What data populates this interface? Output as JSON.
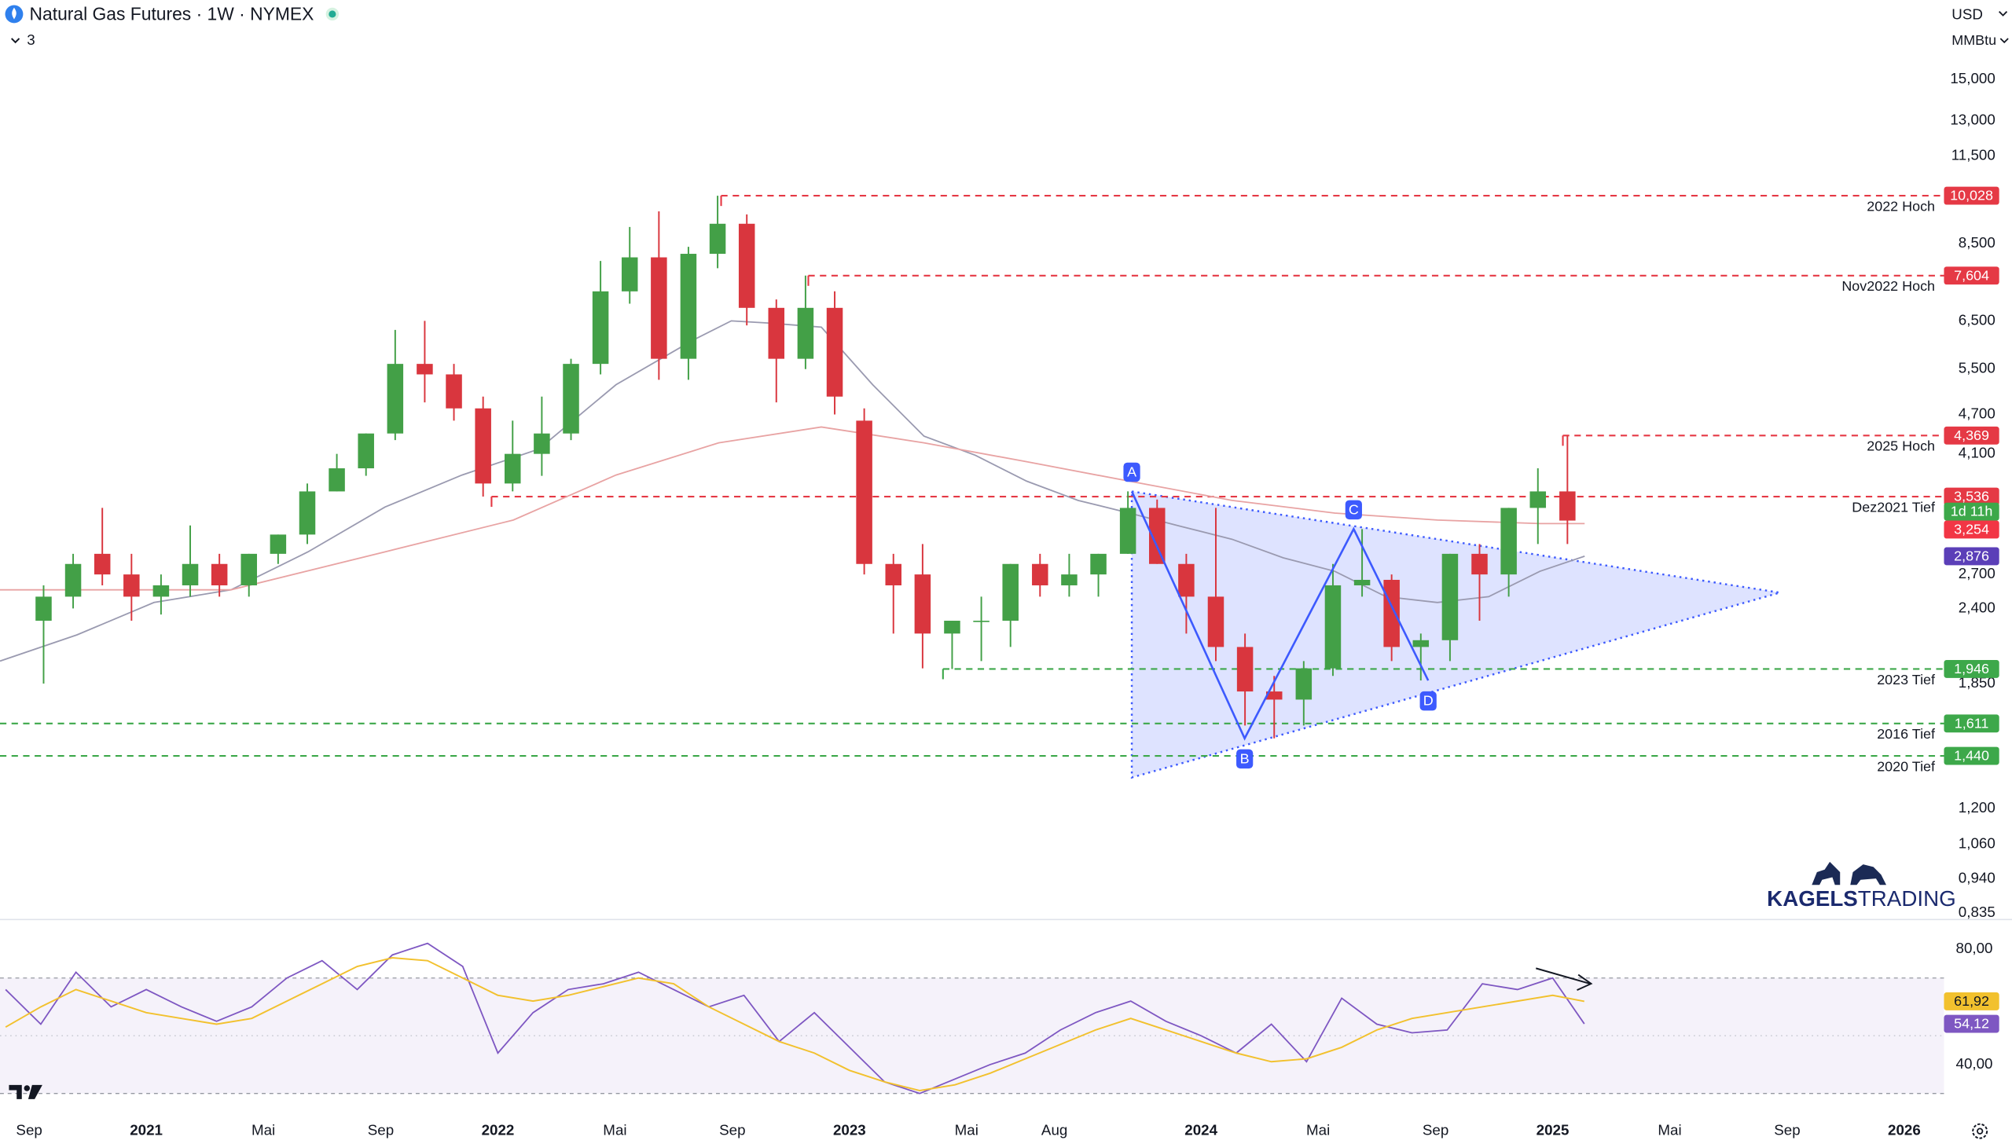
{
  "header": {
    "title": "Natural Gas Futures · 1W · NYMEX",
    "indicators": "3",
    "currency": "USD",
    "unit": "MMBtu"
  },
  "watermark": [
    "KAGELS",
    "TRADING"
  ],
  "chart_data": [
    {
      "type": "candlestick",
      "log_scale": true,
      "xlim": [
        2020.584,
        2026.113
      ],
      "ylim": [
        0.824,
        16.54
      ],
      "xticks": [
        {
          "value": 2020.667,
          "label": "Sep"
        },
        2021,
        {
          "value": 2021.333,
          "label": "Mai"
        },
        {
          "value": 2021.667,
          "label": "Sep"
        },
        2022,
        {
          "value": 2022.333,
          "label": "Mai"
        },
        {
          "value": 2022.667,
          "label": "Sep"
        },
        2023,
        {
          "value": 2023.333,
          "label": "Mai"
        },
        {
          "value": 2023.583,
          "label": "Aug"
        },
        2024,
        {
          "value": 2024.333,
          "label": "Mai"
        },
        {
          "value": 2024.667,
          "label": "Sep"
        },
        2025,
        {
          "value": 2025.333,
          "label": "Mai"
        },
        {
          "value": 2025.667,
          "label": "Sep"
        },
        2026
      ],
      "yticks": [
        {
          "value": 15,
          "label": "15,000"
        },
        {
          "value": 13,
          "label": "13,000"
        },
        {
          "value": 11.5,
          "label": "11,500"
        },
        {
          "value": 8.5,
          "label": "8,500"
        },
        {
          "value": 6.5,
          "label": "6,500"
        },
        {
          "value": 5.5,
          "label": "5,500"
        },
        {
          "value": 4.7,
          "label": "4,700"
        },
        {
          "value": 4.1,
          "label": "4,100"
        },
        {
          "value": 2.7,
          "label": "2,700"
        },
        {
          "value": 2.4,
          "label": "2,400"
        },
        {
          "value": 1.85,
          "label": "1,850"
        },
        {
          "value": 1.2,
          "label": "1,200"
        },
        {
          "value": 1.06,
          "label": "1,060"
        },
        {
          "value": 0.94,
          "label": "0,940"
        },
        {
          "value": 0.835,
          "label": "0,835"
        }
      ],
      "up_color": "#43a047",
      "down_color": "#d9363e",
      "x": [
        2020.708,
        2020.792,
        2020.875,
        2020.958,
        2021.042,
        2021.125,
        2021.208,
        2021.292,
        2021.375,
        2021.458,
        2021.542,
        2021.625,
        2021.708,
        2021.792,
        2021.875,
        2021.958,
        2022.042,
        2022.125,
        2022.208,
        2022.292,
        2022.375,
        2022.458,
        2022.542,
        2022.625,
        2022.708,
        2022.792,
        2022.875,
        2022.958,
        2023.042,
        2023.125,
        2023.208,
        2023.292,
        2023.375,
        2023.458,
        2023.542,
        2023.625,
        2023.708,
        2023.792,
        2023.875,
        2023.958,
        2024.042,
        2024.125,
        2024.208,
        2024.292,
        2024.375,
        2024.458,
        2024.542,
        2024.625,
        2024.708,
        2024.792,
        2024.875,
        2024.958,
        2025.042
      ],
      "open": [
        2.3,
        2.5,
        2.9,
        2.7,
        2.5,
        2.6,
        2.8,
        2.6,
        2.9,
        3.1,
        3.6,
        3.9,
        4.4,
        5.6,
        5.4,
        4.8,
        3.7,
        4.1,
        4.4,
        5.6,
        7.2,
        8.1,
        5.7,
        8.2,
        9.1,
        6.8,
        5.7,
        6.8,
        4.6,
        2.8,
        2.7,
        2.2,
        2.3,
        2.3,
        2.8,
        2.6,
        2.7,
        2.9,
        3.4,
        2.8,
        2.5,
        2.1,
        1.8,
        1.75,
        1.95,
        2.6,
        2.65,
        2.1,
        2.15,
        2.9,
        2.7,
        3.4,
        3.6
      ],
      "high": [
        2.6,
        2.9,
        3.4,
        2.9,
        2.7,
        3.2,
        2.9,
        2.9,
        3.1,
        3.7,
        4.1,
        4.4,
        6.3,
        6.5,
        5.6,
        5.0,
        4.6,
        5.0,
        5.7,
        8.0,
        9.0,
        9.5,
        8.4,
        10.028,
        9.4,
        7.0,
        7.604,
        7.2,
        4.8,
        2.9,
        3.0,
        2.3,
        2.5,
        2.8,
        2.9,
        2.9,
        2.9,
        3.6,
        3.5,
        2.9,
        3.4,
        2.2,
        1.9,
        2.0,
        2.8,
        3.16,
        2.7,
        2.2,
        2.9,
        3.0,
        3.4,
        3.9,
        4.369
      ],
      "low": [
        1.85,
        2.4,
        2.6,
        2.3,
        2.35,
        2.5,
        2.5,
        2.5,
        2.8,
        3.0,
        3.6,
        3.8,
        4.3,
        4.9,
        4.6,
        3.536,
        3.6,
        3.8,
        4.3,
        5.4,
        6.9,
        5.3,
        5.3,
        7.8,
        6.4,
        4.9,
        5.5,
        4.7,
        2.7,
        2.2,
        1.95,
        1.946,
        2.0,
        2.1,
        2.5,
        2.5,
        2.5,
        2.9,
        2.8,
        2.2,
        2.0,
        1.6,
        1.53,
        1.6,
        1.9,
        2.5,
        2.0,
        1.87,
        2.0,
        2.3,
        2.5,
        3.0,
        3.0
      ],
      "close": [
        2.5,
        2.8,
        2.7,
        2.5,
        2.6,
        2.8,
        2.6,
        2.9,
        3.1,
        3.6,
        3.9,
        4.4,
        5.6,
        5.4,
        4.8,
        3.7,
        4.1,
        4.4,
        5.6,
        7.2,
        8.1,
        5.7,
        8.2,
        9.1,
        6.8,
        5.7,
        6.8,
        5.0,
        2.8,
        2.6,
        2.2,
        2.3,
        2.3,
        2.8,
        2.6,
        2.7,
        2.9,
        3.4,
        2.8,
        2.5,
        2.1,
        1.8,
        1.75,
        1.95,
        2.6,
        2.65,
        2.1,
        2.15,
        2.9,
        2.7,
        3.4,
        3.6,
        3.254
      ],
      "overlays": [
        {
          "color": "#9a9ab0",
          "x": [
            2020.584,
            2020.803,
            2021.022,
            2021.241,
            2021.46,
            2021.679,
            2021.898,
            2022.117,
            2022.336,
            2022.555,
            2022.664,
            2022.774,
            2022.92,
            2023.066,
            2023.212,
            2023.358,
            2023.504,
            2023.65,
            2023.796,
            2023.942,
            2024.088,
            2024.234,
            2024.38,
            2024.526,
            2024.672,
            2024.818,
            2024.964,
            2025.091
          ],
          "values": [
            2.0,
            2.19,
            2.45,
            2.56,
            2.92,
            3.41,
            3.81,
            4.17,
            5.21,
            6.08,
            6.5,
            6.45,
            6.36,
            5.21,
            4.36,
            4.08,
            3.73,
            3.49,
            3.34,
            3.19,
            3.05,
            2.86,
            2.73,
            2.5,
            2.45,
            2.5,
            2.73,
            2.876
          ]
        },
        {
          "color": "#e8a3a3",
          "x": [
            2020.584,
            2021.241,
            2021.679,
            2022.044,
            2022.336,
            2022.628,
            2022.92,
            2023.212,
            2023.504,
            2023.796,
            2024.088,
            2024.38,
            2024.672,
            2024.964,
            2025.091
          ],
          "values": [
            2.56,
            2.56,
            2.92,
            3.26,
            3.81,
            4.26,
            4.5,
            4.26,
            3.99,
            3.73,
            3.49,
            3.34,
            3.26,
            3.22,
            3.22
          ]
        }
      ],
      "levels": [
        {
          "value": 10.028,
          "label": "10,028",
          "name": "2022 Hoch",
          "from": 2022.635,
          "color": "#e53945"
        },
        {
          "value": 7.604,
          "label": "7,604",
          "name": "Nov2022 Hoch",
          "from": 2022.883,
          "color": "#e53945"
        },
        {
          "value": 4.369,
          "label": "4,369",
          "name": "2025 Hoch",
          "from": 2025.029,
          "color": "#e53945"
        },
        {
          "value": 3.536,
          "label": "3,536",
          "name": "Dez2021 Tief",
          "from": 2021.982,
          "color": "#e53945"
        },
        {
          "value": 1.946,
          "label": "1,946",
          "name": "2023 Tief",
          "from": 2023.266,
          "color": "#3da84a"
        },
        {
          "value": 1.611,
          "label": "1,611",
          "name": "2016 Tief",
          "color": "#3da84a"
        },
        {
          "value": 1.44,
          "label": "1,440",
          "name": "2020 Tief",
          "color": "#3da84a"
        }
      ],
      "price_tags": [
        {
          "value": 3.254,
          "label": "3,254",
          "color": "#f23645",
          "countdown": "1d 11h",
          "countdown_color": "#3da84a"
        },
        {
          "value": 2.876,
          "label": "2,876",
          "color": "#5b3fb8"
        }
      ],
      "pattern": {
        "color": "#3d5afe",
        "labels": [
          "A",
          "B",
          "C",
          "D"
        ],
        "x": [
          2023.803,
          2024.124,
          2024.434,
          2024.646
        ],
        "y": [
          3.6,
          1.53,
          3.16,
          1.87
        ],
        "triangle": {
          "x": [
            2023.803,
            2025.646,
            2023.803
          ],
          "y": [
            3.6,
            2.535,
            1.336
          ]
        }
      }
    },
    {
      "type": "line",
      "xlim": [
        2020.584,
        2026.113
      ],
      "ylim": [
        27.6,
        89.8
      ],
      "yticks": [
        {
          "value": 80,
          "label": "80,00"
        },
        {
          "value": 40,
          "label": "40,00"
        }
      ],
      "band": [
        30,
        70
      ],
      "midline": 50,
      "band_color": "#7e57c2",
      "x": [
        2020.6,
        2020.7,
        2020.8,
        2020.9,
        2021.0,
        2021.1,
        2021.2,
        2021.3,
        2021.4,
        2021.5,
        2021.6,
        2021.7,
        2021.8,
        2021.9,
        2022.0,
        2022.1,
        2022.2,
        2022.3,
        2022.4,
        2022.5,
        2022.6,
        2022.7,
        2022.8,
        2022.9,
        2023.0,
        2023.1,
        2023.2,
        2023.3,
        2023.4,
        2023.5,
        2023.6,
        2023.7,
        2023.8,
        2023.9,
        2024.0,
        2024.1,
        2024.2,
        2024.3,
        2024.4,
        2024.5,
        2024.6,
        2024.7,
        2024.8,
        2024.9,
        2025.0,
        2025.09
      ],
      "series": [
        {
          "color": "#7e57c2",
          "value_label": "54,12",
          "values": [
            66,
            54,
            72,
            60,
            66,
            60,
            55,
            60,
            70,
            76,
            66,
            78,
            82,
            74,
            44,
            58,
            66,
            68,
            72,
            66,
            60,
            64,
            48,
            58,
            46,
            34,
            30,
            35,
            40,
            44,
            52,
            58,
            62,
            55,
            50,
            44,
            54,
            41,
            63,
            54,
            51,
            52,
            68,
            66,
            70,
            54.12
          ]
        },
        {
          "color": "#f2c12e",
          "value_label": "61,92",
          "values": [
            53,
            60,
            66,
            62,
            58,
            56,
            54,
            56,
            62,
            68,
            74,
            77,
            76,
            70,
            64,
            62,
            64,
            67,
            70,
            68,
            60,
            54,
            48,
            44,
            38,
            34,
            31,
            33,
            37,
            42,
            47,
            52,
            56,
            52,
            48,
            44,
            41,
            42,
            46,
            52,
            56,
            58,
            60,
            62,
            64,
            61.92
          ]
        }
      ]
    }
  ]
}
